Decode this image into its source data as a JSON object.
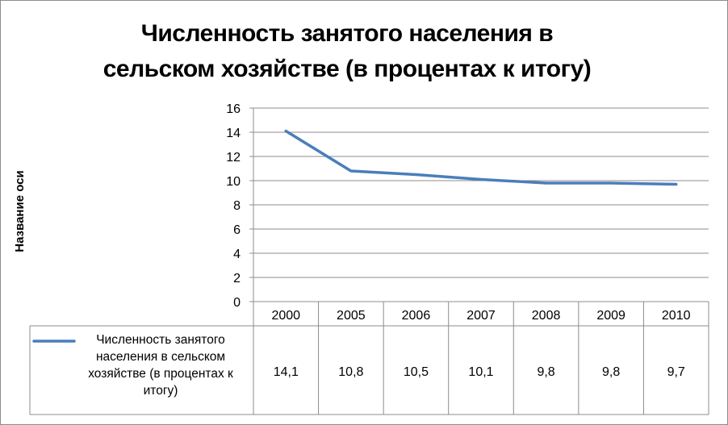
{
  "chart_data": {
    "type": "line",
    "title_lines": [
      "Численность занятого населения в",
      "сельском хозяйстве (в процентах к итогу)"
    ],
    "ylabel": "Название оси",
    "xlabel": "",
    "categories": [
      "2000",
      "2005",
      "2006",
      "2007",
      "2008",
      "2009",
      "2010"
    ],
    "yticks": [
      "0",
      "2",
      "4",
      "6",
      "8",
      "10",
      "12",
      "14",
      "16"
    ],
    "ylim": [
      0,
      16
    ],
    "grid": true,
    "legend_placement": "data-table",
    "series": [
      {
        "name": "Численность занятого населения в сельском хозяйстве (в процентах к итогу)",
        "values": [
          14.1,
          10.8,
          10.5,
          10.1,
          9.8,
          9.8,
          9.7
        ],
        "labels": [
          "14,1",
          "10,8",
          "10,5",
          "10,1",
          "9,8",
          "9,8",
          "9,7"
        ],
        "color": "#4a7ebb"
      }
    ]
  }
}
